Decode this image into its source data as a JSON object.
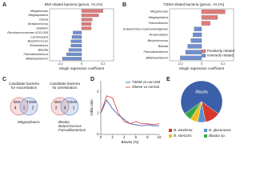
{
  "chart_data": [
    {
      "type": "hbar",
      "label": "A",
      "title": "BMI related bacteria (genus, >0.1%)",
      "categories": [
        "Megamonas",
        "Megasphaera",
        "Dorea",
        "Streptococcus",
        "Dialister",
        "Ruminococcaceae.UCG.005",
        "Lachnospira",
        "Butyricicoccus",
        "Eubacterium",
        "Blautia",
        "Faecalibacterium",
        "Bifidobacterium"
      ],
      "values": [
        0.2,
        0.16,
        0.1,
        0.09,
        0.09,
        -0.08,
        -0.09,
        -0.1,
        -0.1,
        -0.12,
        -0.14,
        -0.18
      ],
      "colors": {
        "positive": "#e07a7a",
        "negative": "#6f8fcf"
      },
      "xlabel": "Single regression coefficient",
      "xlim": [
        -0.3,
        0.3
      ],
      "xticks": [
        -0.2,
        0,
        0.2
      ]
    },
    {
      "type": "hbar",
      "label": "B",
      "title": "T2DM related bacteria (genus, >0.1%)",
      "categories": [
        "Megamonas",
        "Megasphaera",
        "Flavonifractor",
        "Eubacterium.coprostanoligenes",
        "Anaerostipes",
        "Butyricicoccus",
        "Blautia",
        "Faecalibacterium",
        "Bifidobacterium"
      ],
      "values": [
        0.22,
        0.15,
        0.08,
        -0.07,
        -0.08,
        -0.1,
        -0.13,
        -0.15,
        -0.2
      ],
      "colors": {
        "positive": "#e07a7a",
        "negative": "#6f8fcf"
      },
      "legend": [
        "Positively related",
        "Inversely related"
      ],
      "xlabel": "Single regression coefficient",
      "xlim": [
        -0.3,
        0.3
      ],
      "xticks": [
        -0.2,
        0,
        0.2
      ]
    },
    {
      "type": "venn",
      "label": "C",
      "diagrams": [
        {
          "title": [
            "Candidate bacteria",
            "for exacerbation"
          ],
          "sets": [
            "BMI",
            "T2DM"
          ],
          "counts": [
            4,
            1,
            2
          ],
          "members": [
            "Megasphaera"
          ]
        },
        {
          "title": [
            "Candidate bacteria",
            "for amelioration"
          ],
          "sets": [
            "BMI",
            "T2DM"
          ],
          "counts": [
            3,
            4,
            1
          ],
          "members": [
            "Blautia",
            "Butyricicoccus",
            "Faecalibacterium"
          ]
        }
      ],
      "colors": [
        "#e07a7a",
        "#6f8fcf"
      ]
    },
    {
      "type": "line",
      "label": "D",
      "xlabel": "Blautia (%)",
      "ylabel": "Odds ratio",
      "x": [
        0,
        1,
        2,
        3,
        4,
        5,
        6,
        7,
        8,
        9,
        10
      ],
      "series": [
        {
          "name": "T2DM vs non-DM",
          "color": "#3a4fb0",
          "values": [
            1.0,
            1.6,
            1.2,
            0.9,
            0.7,
            0.5,
            0.45,
            0.4,
            0.45,
            0.4,
            0.4
          ]
        },
        {
          "name": "Obese vs normal",
          "color": "#d03a3a",
          "values": [
            1.0,
            1.8,
            1.7,
            1.0,
            0.6,
            0.5,
            0.6,
            0.5,
            0.5,
            0.45,
            0.5
          ]
        }
      ],
      "xlim": [
        0,
        10
      ],
      "xticks": [
        0,
        2,
        4,
        6,
        8,
        10
      ],
      "ylim": [
        0,
        2.5
      ],
      "yticks": [
        0,
        1,
        2
      ]
    },
    {
      "type": "pie",
      "label": "E",
      "categories": [
        "Blautia",
        "B. wexlerae",
        "B. glucerasea",
        "B. stercoris",
        "Blautia sp."
      ],
      "values": [
        70,
        12,
        6,
        6,
        6
      ],
      "colors": [
        "#3b5fa8",
        "#d9362b",
        "#5b8fd0",
        "#f0c020",
        "#3aa64a"
      ]
    }
  ]
}
